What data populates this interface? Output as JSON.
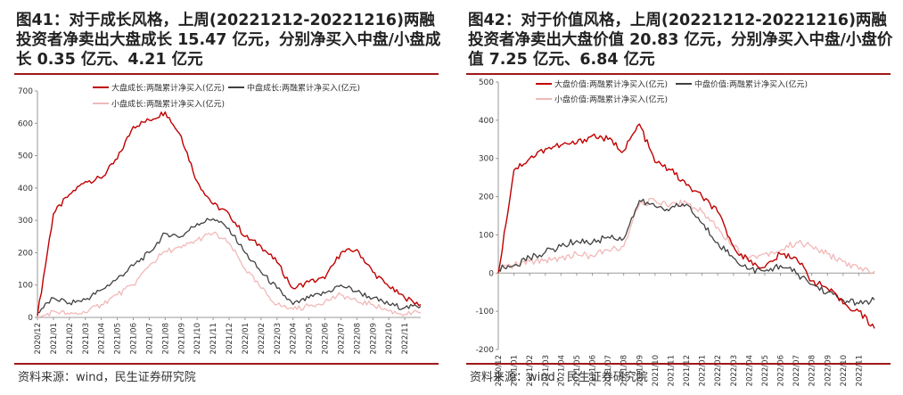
{
  "panels": [
    {
      "title": "图41：对于成长风格，上周(20221212-20221216)两融投资者净卖出大盘成长 15.47 亿元，分别净买入中盘/小盘成长 0.35 亿元、4.21 亿元",
      "source": "资料来源：wind，民生证券研究院",
      "chart_data": {
        "type": "line",
        "ylim": [
          0,
          700
        ],
        "yticks": [
          0,
          100,
          200,
          300,
          400,
          500,
          600,
          700
        ],
        "xlim": [
          "2020-12",
          "2022-12"
        ],
        "xticks": [
          "2020/12",
          "2021/01",
          "2021/02",
          "2021/03",
          "2021/04",
          "2021/05",
          "2021/06",
          "2021/07",
          "2021/08",
          "2021/09",
          "2021/10",
          "2021/11",
          "2021/12",
          "2022/01",
          "2022/02",
          "2022/03",
          "2022/04",
          "2022/05",
          "2022/06",
          "2022/07",
          "2022/08",
          "2022/09",
          "2022/10",
          "2022/11"
        ],
        "legend_position": "top",
        "series": [
          {
            "name": "大盘成长:两融累计净买入(亿元)",
            "color": "#c00000",
            "x": [
              "2020-12",
              "2021-01",
              "2021-02",
              "2021-03",
              "2021-04",
              "2021-05",
              "2021-06",
              "2021-07",
              "2021-08",
              "2021-09",
              "2021-10",
              "2021-11",
              "2021-12",
              "2022-01",
              "2022-02",
              "2022-03",
              "2022-04",
              "2022-05",
              "2022-06",
              "2022-07",
              "2022-08",
              "2022-09",
              "2022-10",
              "2022-11",
              "2022-12"
            ],
            "y": [
              5,
              320,
              380,
              420,
              430,
              490,
              590,
              610,
              635,
              560,
              420,
              350,
              320,
              250,
              220,
              170,
              90,
              110,
              120,
              200,
              210,
              140,
              95,
              60,
              40
            ]
          },
          {
            "name": "中盘成长:两融累计净买入(亿元)",
            "color": "#404040",
            "x": [
              "2020-12",
              "2021-01",
              "2021-02",
              "2021-03",
              "2021-04",
              "2021-05",
              "2021-06",
              "2021-07",
              "2021-08",
              "2021-09",
              "2021-10",
              "2021-11",
              "2021-12",
              "2022-01",
              "2022-02",
              "2022-03",
              "2022-04",
              "2022-05",
              "2022-06",
              "2022-07",
              "2022-08",
              "2022-09",
              "2022-10",
              "2022-11",
              "2022-12"
            ],
            "y": [
              15,
              60,
              45,
              55,
              85,
              120,
              160,
              200,
              260,
              250,
              290,
              305,
              275,
              200,
              140,
              90,
              40,
              60,
              75,
              100,
              80,
              60,
              40,
              30,
              35
            ]
          },
          {
            "name": "小盘成长:两融累计净买入(亿元)",
            "color": "#f2b8b8",
            "x": [
              "2020-12",
              "2021-01",
              "2021-02",
              "2021-03",
              "2021-04",
              "2021-05",
              "2021-06",
              "2021-07",
              "2021-08",
              "2021-09",
              "2021-10",
              "2021-11",
              "2021-12",
              "2022-01",
              "2022-02",
              "2022-03",
              "2022-04",
              "2022-05",
              "2022-06",
              "2022-07",
              "2022-08",
              "2022-09",
              "2022-10",
              "2022-11",
              "2022-12"
            ],
            "y": [
              -5,
              20,
              10,
              15,
              40,
              70,
              100,
              160,
              205,
              215,
              240,
              260,
              230,
              150,
              90,
              40,
              25,
              35,
              50,
              70,
              50,
              40,
              20,
              10,
              15
            ]
          }
        ]
      }
    },
    {
      "title": "图42：对于价值风格，上周(20221212-20221216)两融投资者净卖出大盘价值 20.83 亿元，分别净买入中盘/小盘价值 7.25 亿元、6.84 亿元",
      "source": "资料来源：wind，民生证券研究院",
      "chart_data": {
        "type": "line",
        "ylim": [
          -200,
          500
        ],
        "yticks": [
          -200,
          -100,
          0,
          100,
          200,
          300,
          400,
          500
        ],
        "xlim": [
          "2020-12",
          "2022-12"
        ],
        "xticks": [
          "2020/12",
          "2021/01",
          "2021/02",
          "2021/03",
          "2021/04",
          "2021/05",
          "2021/06",
          "2021/07",
          "2021/08",
          "2021/09",
          "2021/10",
          "2021/11",
          "2021/12",
          "2022/01",
          "2022/02",
          "2022/03",
          "2022/04",
          "2022/05",
          "2022/06",
          "2022/07",
          "2022/08",
          "2022/09",
          "2022/10",
          "2022/11"
        ],
        "legend_position": "top",
        "series": [
          {
            "name": "大盘价值:两融累计净买入(亿元)",
            "color": "#c00000",
            "x": [
              "2020-12",
              "2021-01",
              "2021-02",
              "2021-03",
              "2021-04",
              "2021-05",
              "2021-06",
              "2021-07",
              "2021-08",
              "2021-09",
              "2021-10",
              "2021-11",
              "2021-12",
              "2022-01",
              "2022-02",
              "2022-03",
              "2022-04",
              "2022-05",
              "2022-06",
              "2022-07",
              "2022-08",
              "2022-09",
              "2022-10",
              "2022-11",
              "2022-12"
            ],
            "y": [
              0,
              270,
              300,
              325,
              335,
              340,
              360,
              350,
              320,
              390,
              290,
              270,
              230,
              200,
              160,
              70,
              30,
              15,
              50,
              40,
              -20,
              -40,
              -80,
              -100,
              -145
            ]
          },
          {
            "name": "中盘价值:两融累计净买入(亿元)",
            "color": "#404040",
            "x": [
              "2020-12",
              "2021-01",
              "2021-02",
              "2021-03",
              "2021-04",
              "2021-05",
              "2021-06",
              "2021-07",
              "2021-08",
              "2021-09",
              "2021-10",
              "2021-11",
              "2021-12",
              "2022-01",
              "2022-02",
              "2022-03",
              "2022-04",
              "2022-05",
              "2022-06",
              "2022-07",
              "2022-08",
              "2022-09",
              "2022-10",
              "2022-11",
              "2022-12"
            ],
            "y": [
              10,
              20,
              40,
              55,
              70,
              85,
              80,
              95,
              90,
              190,
              175,
              170,
              180,
              130,
              80,
              40,
              10,
              5,
              20,
              0,
              -30,
              -50,
              -70,
              -80,
              -70
            ]
          },
          {
            "name": "小盘价值:两融累计净买入(亿元)",
            "color": "#f2b8b8",
            "x": [
              "2020-12",
              "2021-01",
              "2021-02",
              "2021-03",
              "2021-04",
              "2021-05",
              "2021-06",
              "2021-07",
              "2021-08",
              "2021-09",
              "2021-10",
              "2021-11",
              "2021-12",
              "2022-01",
              "2022-02",
              "2022-03",
              "2022-04",
              "2022-05",
              "2022-06",
              "2022-07",
              "2022-08",
              "2022-09",
              "2022-10",
              "2022-11",
              "2022-12"
            ],
            "y": [
              15,
              20,
              30,
              35,
              40,
              50,
              45,
              60,
              70,
              180,
              190,
              180,
              185,
              160,
              120,
              70,
              40,
              50,
              60,
              80,
              70,
              50,
              30,
              10,
              5
            ]
          }
        ]
      }
    }
  ]
}
